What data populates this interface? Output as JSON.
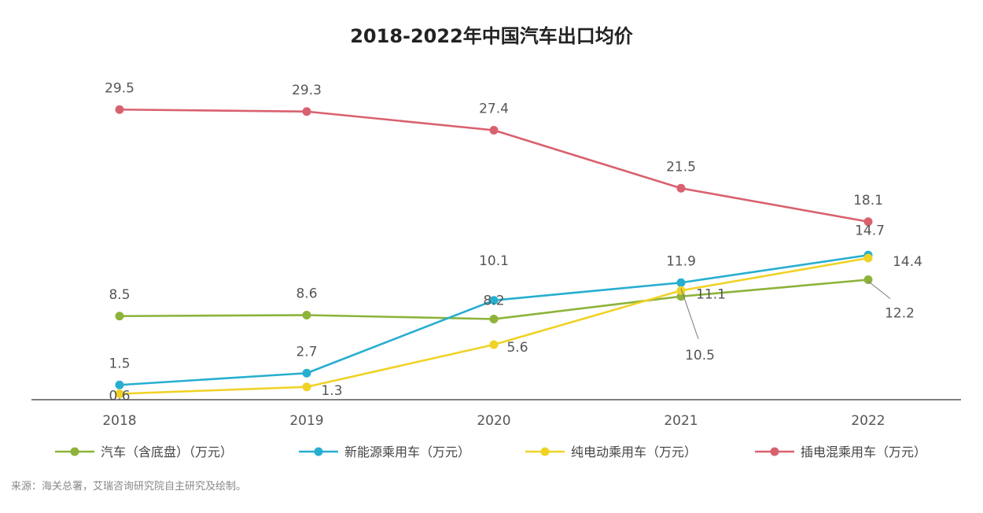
{
  "chart_data": {
    "type": "line",
    "title": "2018-2022年中国汽车出口均价",
    "x": [
      "2018",
      "2019",
      "2020",
      "2021",
      "2022"
    ],
    "ylim": [
      0,
      32
    ],
    "grid": false,
    "legend_position": "bottom",
    "series": [
      {
        "name": "汽车（含底盘）（万元）",
        "color": "#8db33a",
        "values": [
          8.5,
          8.6,
          8.2,
          10.5,
          12.2
        ]
      },
      {
        "name": "新能源乘用车（万元）",
        "color": "#27aed0",
        "values": [
          1.5,
          2.7,
          10.1,
          11.9,
          14.7
        ]
      },
      {
        "name": "纯电动乘用车（万元）",
        "color": "#f0d226",
        "values": [
          0.6,
          1.3,
          5.6,
          11.1,
          14.4
        ]
      },
      {
        "name": "插电混乘用车（万元）",
        "color": "#d9616e",
        "values": [
          29.5,
          29.3,
          27.4,
          21.5,
          18.1
        ]
      }
    ],
    "source": "来源：海关总署，艾瑞咨询研究院自主研究及绘制。"
  }
}
